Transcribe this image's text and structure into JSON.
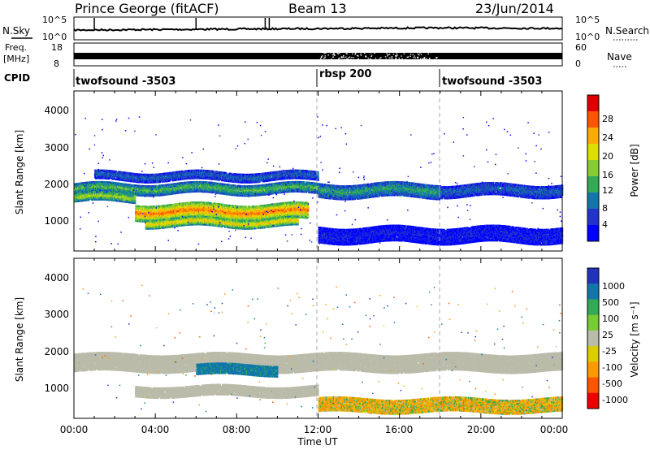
{
  "header": {
    "station": "Prince George (fitACF)",
    "beam": "Beam 13",
    "date": "23/Jun/2014"
  },
  "time_axis": {
    "label": "Time UT",
    "ticks": [
      "00:00",
      "04:00",
      "08:00",
      "12:00",
      "16:00",
      "20:00",
      "00:00"
    ],
    "range_hours": [
      0,
      24
    ]
  },
  "noise_panel": {
    "left_label": "N.Sky",
    "right_label": "N.Search",
    "left_ticks": [
      "10^5",
      "10^0"
    ],
    "right_ticks": [
      "10^5",
      "10^0"
    ]
  },
  "freq_panel": {
    "left_label_line1": "Freq.",
    "left_label_line2": "[MHz]",
    "left_ticks": [
      "18",
      "8"
    ],
    "right_label": "Nave",
    "right_ticks": [
      "60",
      "0"
    ]
  },
  "cpid_panel": {
    "label": "CPID",
    "segments": [
      {
        "start_h": 0,
        "name": "twofsound -3503"
      },
      {
        "start_h": 12,
        "name": "rbsp 200"
      },
      {
        "start_h": 18,
        "name": "twofsound -3503"
      }
    ]
  },
  "power_panel": {
    "ylabel": "Slant Range [km]",
    "cbar_label": "Power [dB]",
    "cbar_ticks": [
      "28",
      "24",
      "20",
      "16",
      "12",
      "8",
      "4"
    ],
    "cbar_colors": [
      "#dd0000",
      "#ff5500",
      "#ffaa00",
      "#dddd00",
      "#88cc33",
      "#33aa55",
      "#1177aa",
      "#2233cc",
      "#0000ff"
    ]
  },
  "velocity_panel": {
    "ylabel": "Slant Range [km]",
    "cbar_label": "Velocity [m s⁻¹]",
    "cbar_ticks": [
      "1000",
      "500",
      "100",
      "25",
      "-25",
      "-100",
      "-500",
      "-1000"
    ],
    "cbar_colors": [
      "#2233bb",
      "#1177aa",
      "#33aa55",
      "#77cc33",
      "#bbbbaa",
      "#ddcc00",
      "#ff9900",
      "#ff5500",
      "#ee0000"
    ]
  },
  "chart_data": {
    "type": "heatmap",
    "title": "Prince George (fitACF)  Beam 13  23/Jun/2014",
    "xlabel": "Time UT",
    "ylabel": "Slant Range [km]",
    "xlim_hours": [
      0,
      24
    ],
    "ylim_km": [
      0,
      4500
    ],
    "y_ticks_km": [
      1000,
      2000,
      3000,
      4000
    ],
    "power_db_range": [
      0,
      32
    ],
    "velocity_range": [
      -1000,
      1000
    ],
    "power_bands": [
      {
        "t0": 0.0,
        "t1": 12.0,
        "r_center": 1750,
        "r_width": 300,
        "level": 14
      },
      {
        "t0": 0.0,
        "t1": 3.0,
        "r_center": 1500,
        "r_width": 250,
        "level": 18
      },
      {
        "t0": 3.0,
        "t1": 11.5,
        "r_center": 1100,
        "r_width": 450,
        "level": 26
      },
      {
        "t0": 3.5,
        "t1": 11.0,
        "r_center": 800,
        "r_width": 250,
        "level": 22
      },
      {
        "t0": 1.0,
        "t1": 12.0,
        "r_center": 2100,
        "r_width": 250,
        "level": 8
      },
      {
        "t0": 12.0,
        "t1": 18.0,
        "r_center": 1700,
        "r_width": 400,
        "level": 12
      },
      {
        "t0": 18.0,
        "t1": 24.0,
        "r_center": 1700,
        "r_width": 350,
        "level": 8
      },
      {
        "t0": 12.0,
        "t1": 24.0,
        "r_center": 450,
        "r_width": 450,
        "level": 4
      }
    ],
    "velocity_bands": [
      {
        "t0": 0.0,
        "t1": 24.0,
        "r_center": 1600,
        "r_width": 500,
        "velocity": 0
      },
      {
        "t0": 3.0,
        "t1": 12.0,
        "r_center": 800,
        "r_width": 300,
        "velocity": 0
      },
      {
        "t0": 6.0,
        "t1": 10.0,
        "r_center": 1400,
        "r_width": 300,
        "velocity": 250
      },
      {
        "t0": 12.0,
        "t1": 24.0,
        "r_center": 400,
        "r_width": 400,
        "velocity": -100
      }
    ]
  }
}
